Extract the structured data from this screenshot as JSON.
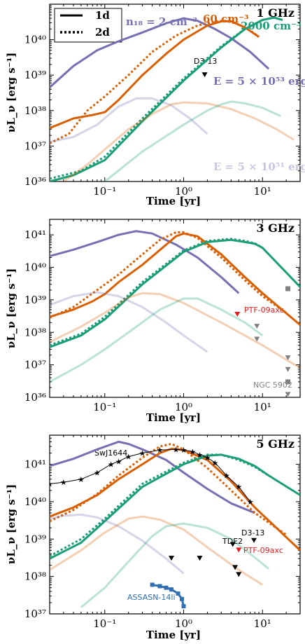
{
  "colors": {
    "n2": "#7570b3",
    "n60": "#d95f02",
    "n2000": "#1b9e77",
    "red": "#e41a1c",
    "blue": "#2f6fb2",
    "gray": "#808080"
  },
  "legend": {
    "solid": "1d",
    "dotted": "2d"
  },
  "common_axes": {
    "xlabel": "Time [yr]",
    "ylabel": "νL_ν [erg s⁻¹]",
    "x_scale": "log",
    "y_scale": "log",
    "xlim": [
      0.02,
      30
    ],
    "xticks": [
      0.1,
      1,
      10
    ],
    "xtick_labels": [
      "10⁻¹",
      "10⁰",
      "10¹"
    ]
  },
  "panel_labels": {
    "p1": {
      "freq": "1 GHz",
      "n18": "n₁₈ = 2 cm⁻³",
      "n60": "60 cm⁻³",
      "n2000": "2000 cm⁻³",
      "Ehi": "E = 5 × 10⁵³ erg",
      "Elo": "E = 5 × 10⁵¹ erg",
      "d313": "D3-13"
    },
    "p2": {
      "freq": "3 GHz",
      "ptf": "PTF-09axc",
      "ngc": "NGC 5902"
    },
    "p3": {
      "freq": "5 GHz",
      "swj": "SwJ1644",
      "tde2": "TDE2",
      "d313": "D3-13",
      "ptf": "PTF-09axc",
      "assasn": "ASSASN-14li"
    }
  },
  "chart_data": [
    {
      "type": "line",
      "id": "p1",
      "title": "1 GHz",
      "xlabel": "Time [yr]",
      "ylabel": "νL_ν [erg s⁻¹]",
      "xlim": [
        0.02,
        30
      ],
      "ylim": [
        1e+36,
        1e+41
      ],
      "yticks": [
        1e+36,
        1e+37,
        1e+38,
        1e+39,
        1e+40
      ],
      "ytick_labels": [
        "10³⁶",
        "10³⁷",
        "10³⁸",
        "10³⁹",
        "10⁴⁰"
      ],
      "legend_position": "top-left",
      "series": [
        {
          "color": "n2",
          "dash": "solid",
          "alpha": 1,
          "x": [
            0.02,
            0.04,
            0.08,
            0.15,
            0.3,
            0.6,
            1.0,
            1.5,
            2.5,
            4,
            7,
            12
          ],
          "y": [
            4.5e+38,
            1.8e+39,
            5e+39,
            9e+39,
            1.6e+40,
            2.9e+40,
            4e+40,
            3.4e+40,
            2e+40,
            1.1e+40,
            4.5e+39,
            1.5e+39
          ]
        },
        {
          "color": "n60",
          "dash": "solid",
          "alpha": 1,
          "x": [
            0.02,
            0.04,
            0.07,
            0.1,
            0.15,
            0.3,
            0.6,
            1,
            2,
            3,
            4,
            6,
            9
          ],
          "y": [
            3.2e+37,
            6e+37,
            7.5e+37,
            9e+37,
            2e+38,
            1e+39,
            4e+39,
            1e+40,
            2.5e+40,
            3.3e+40,
            3.3e+40,
            2.2e+40,
            1.2e+40
          ]
        },
        {
          "color": "n60",
          "dash": "dotted",
          "alpha": 1,
          "x": [
            0.02,
            0.035,
            0.06,
            0.1,
            0.2,
            0.4,
            0.8,
            1.5,
            2.5,
            3.5,
            5,
            7,
            9
          ],
          "y": [
            1.2e+37,
            2.2e+37,
            1e+38,
            2.5e+38,
            1e+39,
            4.5e+39,
            1.3e+40,
            2.5e+40,
            3.3e+40,
            3.4e+40,
            2.7e+40,
            1.8e+40,
            1.2e+40
          ]
        },
        {
          "color": "n2000",
          "dash": "solid",
          "alpha": 1,
          "x": [
            0.02,
            0.04,
            0.1,
            0.3,
            1,
            3,
            6,
            10,
            14,
            18
          ],
          "y": [
            1e+36,
            1.5e+36,
            4e+36,
            5e+37,
            7e+38,
            6e+39,
            2e+40,
            3.6e+40,
            4.2e+40,
            3.6e+40
          ]
        },
        {
          "color": "n2000",
          "dash": "dotted",
          "alpha": 1,
          "x": [
            0.02,
            0.05,
            0.1,
            0.3,
            1,
            3,
            6,
            10
          ],
          "y": [
            1.2e+36,
            2e+36,
            5e+36,
            6e+37,
            8e+38,
            6.5e+39,
            2e+40,
            3.6e+40
          ]
        },
        {
          "color": "n2",
          "dash": "solid",
          "alpha": 0.3,
          "x": [
            0.02,
            0.04,
            0.08,
            0.15,
            0.25,
            0.4,
            0.7,
            1.2,
            2
          ],
          "y": [
            1.3e+37,
            1.8e+37,
            4e+37,
            1.3e+38,
            2.2e+38,
            2.2e+38,
            1.4e+38,
            6e+37,
            2.2e+37
          ]
        },
        {
          "color": "n60",
          "dash": "solid",
          "alpha": 0.3,
          "x": [
            0.03,
            0.06,
            0.1,
            0.2,
            0.4,
            0.7,
            1,
            2,
            4,
            8,
            15,
            25
          ],
          "y": [
            1e+36,
            3e+36,
            8e+36,
            3e+37,
            8e+37,
            1.5e+38,
            1.7e+38,
            1.6e+38,
            1.1e+38,
            6e+37,
            3e+37,
            1.5e+37
          ]
        },
        {
          "color": "n2000",
          "dash": "solid",
          "alpha": 0.3,
          "x": [
            0.1,
            0.3,
            1,
            2,
            3,
            4,
            6,
            10,
            17
          ],
          "y": [
            1e+36,
            7e+36,
            4e+37,
            1e+38,
            1.5e+38,
            1.8e+38,
            1.6e+38,
            1.2e+38,
            7e+37
          ]
        }
      ],
      "points": [
        {
          "label": "D3-13",
          "x": 1.85,
          "y": 1e+39,
          "marker": "down-triangle",
          "color": "black"
        }
      ]
    },
    {
      "type": "line",
      "id": "p2",
      "title": "3 GHz",
      "xlabel": "Time [yr]",
      "ylabel": "νL_ν [erg s⁻¹]",
      "xlim": [
        0.02,
        30
      ],
      "ylim": [
        1e+36,
        3e+41
      ],
      "yticks": [
        1e+36,
        1e+37,
        1e+38,
        1e+39,
        1e+40,
        1e+41
      ],
      "ytick_labels": [
        "10³⁶",
        "10³⁷",
        "10³⁸",
        "10³⁹",
        "10⁴⁰",
        "10⁴¹"
      ],
      "series": [
        {
          "color": "n2",
          "dash": "solid",
          "alpha": 1,
          "x": [
            0.02,
            0.04,
            0.08,
            0.15,
            0.25,
            0.4,
            0.8,
            1.5,
            3,
            5
          ],
          "y": [
            2.2e+40,
            3.5e+40,
            6e+40,
            1e+41,
            1.3e+41,
            1.1e+41,
            5e+40,
            2e+40,
            5e+39,
            1.6e+39
          ]
        },
        {
          "color": "n60",
          "dash": "solid",
          "alpha": 1,
          "x": [
            0.02,
            0.04,
            0.07,
            0.1,
            0.15,
            0.3,
            0.6,
            0.8,
            1,
            1.5,
            3,
            6,
            10,
            30
          ],
          "y": [
            3e+38,
            5e+38,
            9e+38,
            1.5e+39,
            3.5e+39,
            1.2e+40,
            5e+40,
            9e+40,
            1.1e+41,
            9e+40,
            2.5e+40,
            5e+39,
            1.6e+39,
            1.7e+38
          ]
        },
        {
          "color": "n60",
          "dash": "dotted",
          "alpha": 1,
          "x": [
            0.02,
            0.04,
            0.08,
            0.15,
            0.3,
            0.5,
            0.8,
            1,
            1.5,
            3,
            6,
            10,
            20
          ],
          "y": [
            2.8e+38,
            6e+38,
            2e+39,
            6e+39,
            2.5e+40,
            7e+40,
            1.2e+41,
            1.2e+41,
            8e+40,
            2e+40,
            4e+39,
            1.3e+39,
            4e+38
          ]
        },
        {
          "color": "n2000",
          "dash": "solid",
          "alpha": 1,
          "x": [
            0.02,
            0.05,
            0.1,
            0.3,
            1,
            2,
            4,
            6,
            8,
            10,
            30
          ],
          "y": [
            3.5e+37,
            8e+37,
            2.5e+38,
            3e+39,
            3e+40,
            6e+40,
            7e+40,
            6e+40,
            5.3e+40,
            4e+40,
            2.5e+39
          ]
        },
        {
          "color": "n2000",
          "dash": "dotted",
          "alpha": 1,
          "x": [
            0.02,
            0.05,
            0.1,
            0.3,
            1,
            2,
            4,
            6,
            8,
            10
          ],
          "y": [
            4e+37,
            9e+37,
            3e+38,
            3.5e+39,
            3.3e+40,
            6.5e+40,
            7.5e+40,
            6.5e+40,
            5.5e+40,
            4e+40
          ]
        },
        {
          "color": "n2",
          "dash": "solid",
          "alpha": 0.3,
          "x": [
            0.02,
            0.04,
            0.08,
            0.15,
            0.3,
            0.6,
            1,
            2
          ],
          "y": [
            7e+38,
            1.3e+39,
            1.7e+39,
            1.3e+39,
            6e+38,
            2e+38,
            8e+37,
            2.5e+37
          ]
        },
        {
          "color": "n60",
          "dash": "solid",
          "alpha": 0.3,
          "x": [
            0.02,
            0.05,
            0.1,
            0.2,
            0.3,
            0.5,
            1,
            3,
            10,
            30
          ],
          "y": [
            5e+37,
            1.5e+38,
            4e+38,
            1.2e+39,
            1.6e+39,
            1.5e+39,
            8e+38,
            2e+38,
            4e+37,
            8e+36
          ]
        },
        {
          "color": "n2000",
          "dash": "solid",
          "alpha": 0.3,
          "x": [
            0.02,
            0.05,
            0.1,
            0.2,
            0.5,
            1,
            1.5,
            3,
            6,
            10
          ],
          "y": [
            3e+36,
            1e+37,
            3e+37,
            1e+38,
            5e+38,
            1.1e+39,
            1.1e+39,
            5e+38,
            2e+38,
            8e+37
          ]
        }
      ],
      "points": [
        {
          "label": "PTF-09axc",
          "x": 4.8,
          "y": 3.5e+38,
          "marker": "down-triangle",
          "color": "red"
        },
        {
          "label": "",
          "x": 8.5,
          "y": 1.5e+38,
          "marker": "down-triangle",
          "color": "gray"
        },
        {
          "label": "",
          "x": 8.5,
          "y": 6e+37,
          "marker": "down-triangle",
          "color": "gray"
        },
        {
          "label": "",
          "x": 21,
          "y": 2.2e+39,
          "marker": "square",
          "color": "gray"
        },
        {
          "label": "",
          "x": 21,
          "y": 1.6e+37,
          "marker": "down-triangle",
          "color": "gray"
        },
        {
          "label": "",
          "x": 21,
          "y": 7e+36,
          "marker": "down-triangle",
          "color": "gray"
        },
        {
          "label": "NGC 5902",
          "x": 21,
          "y": 3e+36,
          "marker": "square",
          "color": "gray"
        },
        {
          "label": "",
          "x": 21,
          "y": 1.2e+36,
          "marker": "down-triangle",
          "color": "gray"
        }
      ]
    },
    {
      "type": "line",
      "id": "p3",
      "title": "5 GHz",
      "xlabel": "Time [yr]",
      "ylabel": "νL_ν [erg s⁻¹]",
      "xlim": [
        0.02,
        30
      ],
      "ylim": [
        1e+37,
        6e+41
      ],
      "yticks": [
        1e+37,
        1e+38,
        1e+39,
        1e+40,
        1e+41
      ],
      "ytick_labels": [
        "10³⁷",
        "10³⁸",
        "10³⁹",
        "10⁴⁰",
        "10⁴¹"
      ],
      "series": [
        {
          "color": "n2",
          "dash": "solid",
          "alpha": 1,
          "x": [
            0.02,
            0.04,
            0.08,
            0.15,
            0.2,
            0.3,
            0.6,
            1,
            2,
            4,
            8
          ],
          "y": [
            9e+40,
            1.4e+41,
            2.5e+41,
            4e+41,
            3.5e+41,
            2.5e+41,
            1.3e+41,
            6e+40,
            2.2e+40,
            9e+39,
            5e+39
          ]
        },
        {
          "color": "n60",
          "dash": "solid",
          "alpha": 1,
          "x": [
            0.02,
            0.04,
            0.08,
            0.15,
            0.3,
            0.5,
            0.7,
            1,
            2,
            4,
            8,
            30
          ],
          "y": [
            4e+39,
            7e+39,
            1.5e+40,
            4e+40,
            1e+41,
            2e+41,
            2.6e+41,
            2.4e+41,
            1.3e+41,
            3.5e+40,
            7e+39,
            5e+38
          ]
        },
        {
          "color": "n60",
          "dash": "dotted",
          "alpha": 1,
          "x": [
            0.02,
            0.04,
            0.08,
            0.15,
            0.3,
            0.5,
            0.7,
            1,
            2,
            4,
            8,
            20
          ],
          "y": [
            3e+39,
            6e+39,
            1.6e+40,
            5e+40,
            1.5e+41,
            3e+41,
            3.5e+41,
            2.5e+41,
            8e+40,
            2e+40,
            5e+39,
            1.3e+39
          ]
        },
        {
          "color": "n2000",
          "dash": "solid",
          "alpha": 1,
          "x": [
            0.02,
            0.05,
            0.1,
            0.3,
            1,
            2,
            3,
            5,
            8,
            12,
            30
          ],
          "y": [
            3e+38,
            8e+38,
            3e+39,
            2.5e+40,
            1e+41,
            1.7e+41,
            1.8e+41,
            1.4e+41,
            9e+40,
            5e+40,
            1.5e+40
          ]
        },
        {
          "color": "n2000",
          "dash": "dotted",
          "alpha": 1,
          "x": [
            0.02,
            0.05,
            0.1,
            0.3,
            1,
            2,
            3,
            5,
            8,
            12
          ],
          "y": [
            3.5e+38,
            1e+39,
            3.5e+39,
            3e+40,
            1.1e+41,
            1.8e+41,
            1.8e+41,
            1.3e+41,
            8.5e+40,
            5e+40
          ]
        },
        {
          "color": "n2",
          "dash": "solid",
          "alpha": 0.3,
          "x": [
            0.02,
            0.03,
            0.05,
            0.08,
            0.15,
            0.3,
            0.6,
            1
          ],
          "y": [
            3.5e+39,
            4.2e+39,
            4.5e+39,
            3.8e+39,
            2.2e+39,
            9e+38,
            3e+38,
            1.2e+38
          ]
        },
        {
          "color": "n60",
          "dash": "solid",
          "alpha": 0.3,
          "x": [
            0.02,
            0.05,
            0.1,
            0.2,
            0.3,
            0.5,
            1,
            2,
            5,
            10
          ],
          "y": [
            1.5e+38,
            5e+38,
            1.5e+39,
            3.5e+39,
            4e+39,
            3.3e+39,
            1.8e+39,
            6e+38,
            1.5e+38,
            6e+37
          ]
        },
        {
          "color": "n2000",
          "dash": "solid",
          "alpha": 0.3,
          "x": [
            0.05,
            0.1,
            0.2,
            0.4,
            0.6,
            1,
            2,
            4,
            7,
            12
          ],
          "y": [
            1.5e+37,
            5e+37,
            2.5e+38,
            1.2e+39,
            2.2e+39,
            2.6e+39,
            2e+39,
            1e+39,
            4e+38,
            1.6e+38
          ]
        },
        {
          "color": "blue",
          "dash": "solid",
          "alpha": 1,
          "x": [
            0.4,
            0.5,
            0.6,
            0.7,
            0.85,
            0.95,
            1.0
          ],
          "y": [
            6e+37,
            5.5e+37,
            5e+37,
            4.5e+37,
            3.5e+37,
            2.5e+37,
            1.6e+37
          ],
          "marker": "square",
          "label": "ASSASN-14li"
        },
        {
          "color": "black",
          "dash": "solid",
          "alpha": 1,
          "thin": true,
          "x": [
            0.02,
            0.03,
            0.05,
            0.08,
            0.12,
            0.15,
            0.2,
            0.3,
            0.5,
            0.8,
            1.0,
            1.3,
            1.6,
            2.0,
            2.5,
            3.5,
            5,
            7
          ],
          "y": [
            3e+40,
            3.3e+40,
            4e+40,
            6e+40,
            1e+41,
            1.2e+41,
            1.6e+41,
            2e+41,
            2.4e+41,
            2.5e+41,
            2.4e+41,
            2.2e+41,
            1.8e+41,
            1.5e+41,
            1.1e+41,
            5e+40,
            2.5e+40,
            1e+40
          ],
          "marker": "star",
          "label": "SwJ1644"
        }
      ],
      "points": [
        {
          "label": "",
          "x": 0.7,
          "y": 3e+38,
          "marker": "down-triangle",
          "color": "black"
        },
        {
          "label": "",
          "x": 1.6,
          "y": 3e+38,
          "marker": "down-triangle",
          "color": "black"
        },
        {
          "label": "TDE2",
          "x": 4.5,
          "y": 1.7e+38,
          "marker": "down-triangle",
          "color": "black"
        },
        {
          "label": "",
          "x": 5.0,
          "y": 1.1e+38,
          "marker": "down-triangle",
          "color": "black"
        },
        {
          "label": "D3-13",
          "x": 7.8,
          "y": 9e+38,
          "marker": "down-triangle",
          "color": "black"
        },
        {
          "label": "",
          "x": 4.2,
          "y": 7e+38,
          "marker": "down-triangle",
          "color": "black"
        },
        {
          "label": "PTF-09axc",
          "x": 5.0,
          "y": 5e+38,
          "marker": "down-triangle",
          "color": "red"
        }
      ]
    }
  ]
}
